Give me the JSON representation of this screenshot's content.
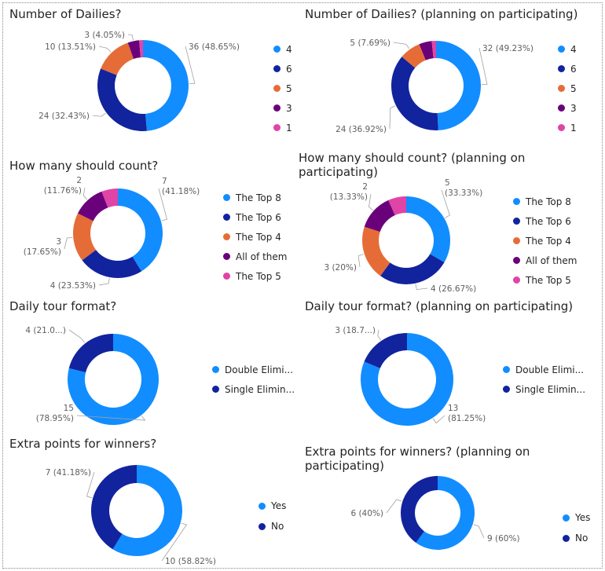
{
  "chart_data": [
    {
      "type": "pie",
      "title": "Number of Dailies?",
      "categories": [
        "4",
        "6",
        "5",
        "3",
        "1"
      ],
      "values": [
        36,
        24,
        10,
        3,
        1
      ],
      "labels": [
        "36 (48.65%)",
        "24 (32.43%)",
        "10 (13.51%)",
        "3 (4.05%)",
        ""
      ],
      "colors": [
        "#118DFF",
        "#12239E",
        "#E66C37",
        "#6B007B",
        "#E044A7"
      ],
      "legend_position": "right"
    },
    {
      "type": "pie",
      "title": "Number of Dailies? (planning on participating)",
      "categories": [
        "4",
        "6",
        "5",
        "3",
        "1"
      ],
      "values": [
        32,
        24,
        5,
        3,
        1
      ],
      "labels": [
        "32 (49.23%)",
        "24 (36.92%)",
        "5 (7.69%)",
        "",
        ""
      ],
      "colors": [
        "#118DFF",
        "#12239E",
        "#E66C37",
        "#6B007B",
        "#E044A7"
      ],
      "legend_position": "right"
    },
    {
      "type": "pie",
      "title": "How many should count?",
      "categories": [
        "The Top 8",
        "The Top 6",
        "The Top 4",
        "All of them",
        "The Top 5"
      ],
      "values": [
        7,
        4,
        3,
        2,
        1
      ],
      "labels": [
        "7\n(41.18%)",
        "4 (23.53%)",
        "3\n(17.65%)",
        "2\n(11.76%)",
        ""
      ],
      "colors": [
        "#118DFF",
        "#12239E",
        "#E66C37",
        "#6B007B",
        "#E044A7"
      ],
      "legend_position": "right"
    },
    {
      "type": "pie",
      "title": "How many should count? (planning on participating)",
      "categories": [
        "The Top 8",
        "The Top 6",
        "The Top 4",
        "All of them",
        "The Top 5"
      ],
      "values": [
        5,
        4,
        3,
        2,
        1
      ],
      "labels": [
        "5\n(33.33%)",
        "4 (26.67%)",
        "3 (20%)",
        "2\n(13.33%)",
        ""
      ],
      "colors": [
        "#118DFF",
        "#12239E",
        "#E66C37",
        "#6B007B",
        "#E044A7"
      ],
      "legend_position": "right"
    },
    {
      "type": "pie",
      "title": "Daily tour format?",
      "categories": [
        "Double Elimi...",
        "Single Elimin..."
      ],
      "values": [
        15,
        4
      ],
      "labels": [
        "15\n(78.95%)",
        "4 (21.0...)"
      ],
      "colors": [
        "#118DFF",
        "#12239E"
      ],
      "legend_position": "right"
    },
    {
      "type": "pie",
      "title": "Daily tour format? (planning on participating)",
      "categories": [
        "Double Elimi...",
        "Single Elimin..."
      ],
      "values": [
        13,
        3
      ],
      "labels": [
        "13\n(81.25%)",
        "3 (18.7...)"
      ],
      "colors": [
        "#118DFF",
        "#12239E"
      ],
      "legend_position": "right"
    },
    {
      "type": "pie",
      "title": "Extra points for winners?",
      "categories": [
        "Yes",
        "No"
      ],
      "values": [
        10,
        7
      ],
      "labels": [
        "10 (58.82%)",
        "7 (41.18%)"
      ],
      "colors": [
        "#118DFF",
        "#12239E"
      ],
      "legend_position": "right"
    },
    {
      "type": "pie",
      "title": "Extra points for winners? (planning on participating)",
      "categories": [
        "Yes",
        "No"
      ],
      "values": [
        9,
        6
      ],
      "labels": [
        "9 (60%)",
        "6 (40%)"
      ],
      "colors": [
        "#118DFF",
        "#12239E"
      ],
      "legend_position": "right"
    }
  ]
}
